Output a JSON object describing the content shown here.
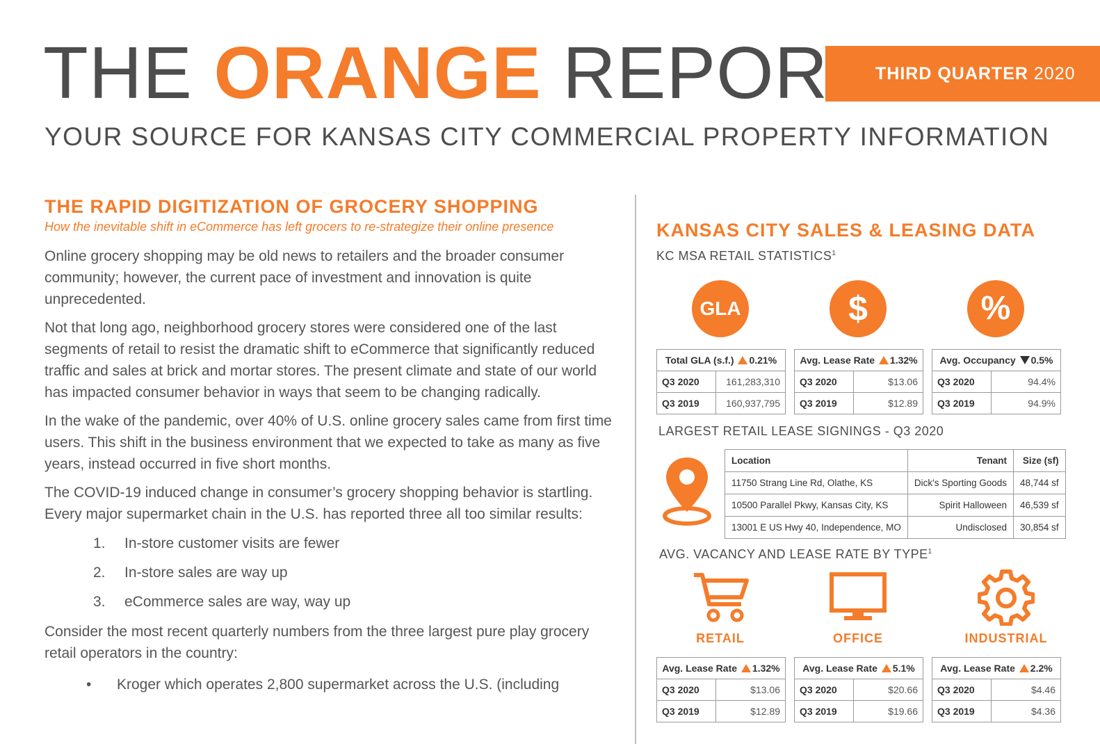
{
  "masthead": {
    "word1": "THE",
    "word2": "ORANGE",
    "word3": "REPORT",
    "quarter_label": "THIRD QUARTER",
    "quarter_year": "2020",
    "tagline": "YOUR SOURCE FOR KANSAS CITY COMMERCIAL PROPERTY INFORMATION"
  },
  "article": {
    "title": "THE RAPID DIGITIZATION OF GROCERY SHOPPING",
    "subtitle": "How the inevitable shift in eCommerce has left grocers to re-strategize their online presence",
    "paragraphs": [
      "Online grocery shopping may be old news to retailers and the broader consumer community; however, the current pace of investment and innovation is quite unprecedented.",
      "Not that long ago, neighborhood grocery stores were considered one of the last segments of retail to resist the dramatic shift to eCommerce that significantly reduced traffic and sales at brick and mortar stores. The present climate and state of our world has impacted consumer behavior in ways that seem to be changing radically.",
      "In the wake of the pandemic, over 40% of U.S. online grocery sales came from first time users. This shift in the business environment that we expected to take as many as five years, instead occurred in five short months.",
      "The COVID-19 induced change in consumer’s grocery shopping behavior is startling. Every major supermarket chain in the U.S. has reported three all too similar results:"
    ],
    "list": [
      {
        "num": "1.",
        "text": "In-store customer visits are fewer"
      },
      {
        "num": "2.",
        "text": "In-store sales are way up"
      },
      {
        "num": "3.",
        "text": "eCommerce sales are way, way up"
      }
    ],
    "closing": "Consider the most recent quarterly numbers from the three largest pure play grocery retail operators in the country:",
    "bullet": "Kroger which operates 2,800 supermarket across the U.S. (including"
  },
  "data_section": {
    "title": "KANSAS CITY SALES & LEASING DATA",
    "retail_stats_heading": "KC MSA RETAIL STATISTICS",
    "footnote_mark": "1",
    "icons": {
      "gla": "GLA",
      "dollar": "$",
      "percent": "%"
    },
    "stats": [
      {
        "header": "Total GLA (s.f.)",
        "direction": "up",
        "change": "0.21%",
        "rows": [
          [
            "Q3 2020",
            "161,283,310"
          ],
          [
            "Q3 2019",
            "160,937,795"
          ]
        ]
      },
      {
        "header": "Avg. Lease Rate",
        "direction": "up",
        "change": "1.32%",
        "rows": [
          [
            "Q3 2020",
            "$13.06"
          ],
          [
            "Q3 2019",
            "$12.89"
          ]
        ]
      },
      {
        "header": "Avg. Occupancy",
        "direction": "down",
        "change": "0.5%",
        "rows": [
          [
            "Q3 2020",
            "94.4%"
          ],
          [
            "Q3 2019",
            "94.9%"
          ]
        ]
      }
    ],
    "lease_heading": "LARGEST RETAIL LEASE SIGNINGS - Q3 2020",
    "lease_table": {
      "headers": [
        "Location",
        "Tenant",
        "Size (sf)"
      ],
      "rows": [
        [
          "11750 Strang Line Rd, Olathe, KS",
          "Dick's Sporting Goods",
          "48,744 sf"
        ],
        [
          "10500 Parallel Pkwy, Kansas City, KS",
          "Spirit Halloween",
          "46,539 sf"
        ],
        [
          "13001 E US Hwy 40, Independence, MO",
          "Undisclosed",
          "30,854 sf"
        ]
      ]
    },
    "vacancy_heading": "AVG. VACANCY AND LEASE RATE BY TYPE",
    "types": [
      {
        "label": "RETAIL",
        "icon": "cart-icon",
        "header": "Avg. Lease Rate",
        "direction": "up",
        "change": "1.32%",
        "rows": [
          [
            "Q3 2020",
            "$13.06"
          ],
          [
            "Q3 2019",
            "$12.89"
          ]
        ]
      },
      {
        "label": "OFFICE",
        "icon": "monitor-icon",
        "header": "Avg. Lease Rate",
        "direction": "up",
        "change": "5.1%",
        "rows": [
          [
            "Q3 2020",
            "$20.66"
          ],
          [
            "Q3 2019",
            "$19.66"
          ]
        ]
      },
      {
        "label": "INDUSTRIAL",
        "icon": "gear-icon",
        "header": "Avg. Lease Rate",
        "direction": "up",
        "change": "2.2%",
        "rows": [
          [
            "Q3 2020",
            "$4.46"
          ],
          [
            "Q3 2019",
            "$4.36"
          ]
        ]
      }
    ]
  },
  "colors": {
    "accent": "#f47c2a",
    "text": "#4d4d4d"
  }
}
